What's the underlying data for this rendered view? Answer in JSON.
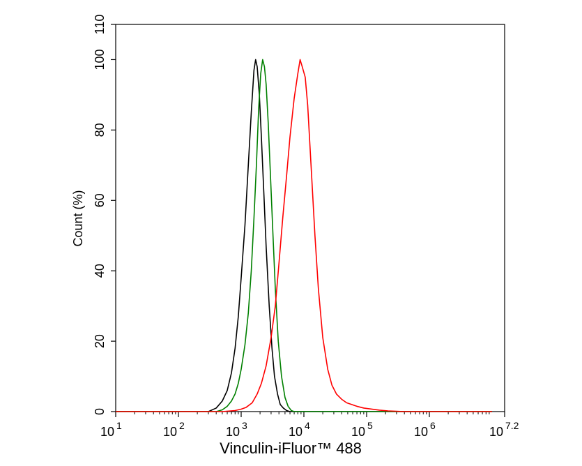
{
  "chart_data": {
    "type": "line",
    "title": "",
    "xlabel": "Vinculin-iFluor™ 488",
    "ylabel": "Count  (%)",
    "x_scale": "log10",
    "xlim": [
      10,
      15848932
    ],
    "ylim": [
      0,
      110
    ],
    "x_ticks": [
      {
        "base": "10",
        "exp": "1",
        "value": 10
      },
      {
        "base": "10",
        "exp": "2",
        "value": 100
      },
      {
        "base": "10",
        "exp": "3",
        "value": 1000
      },
      {
        "base": "10",
        "exp": "4",
        "value": 10000
      },
      {
        "base": "10",
        "exp": "5",
        "value": 100000
      },
      {
        "base": "10",
        "exp": "6",
        "value": 1000000
      },
      {
        "base": "10",
        "exp": "7.2",
        "value": 15848932
      }
    ],
    "y_ticks": [
      "0",
      "20",
      "40",
      "60",
      "80",
      "100",
      "110"
    ],
    "grid": false,
    "series": [
      {
        "color": "#000000",
        "x": [
          10,
          100,
          200,
          300,
          400,
          500,
          600,
          700,
          800,
          900,
          1000,
          1150,
          1300,
          1450,
          1600,
          1700,
          1800,
          1950,
          2100,
          2300,
          2500,
          2800,
          3100,
          3400,
          3800,
          4200,
          4700,
          5300,
          6000,
          7000,
          10000000
        ],
        "y": [
          0,
          0,
          0,
          0,
          1,
          3,
          6,
          11,
          18,
          27,
          38,
          53,
          70,
          85,
          97,
          100,
          98,
          90,
          78,
          62,
          47,
          30,
          18,
          10,
          5,
          2,
          1,
          0.3,
          0,
          0,
          0
        ]
      },
      {
        "color": "#008000",
        "x": [
          10,
          200,
          400,
          500,
          600,
          700,
          800,
          900,
          1000,
          1150,
          1300,
          1450,
          1600,
          1750,
          1900,
          2050,
          2200,
          2350,
          2500,
          2700,
          2900,
          3200,
          3500,
          3900,
          4400,
          5000,
          5600,
          6300,
          7000,
          10000000
        ],
        "y": [
          0,
          0,
          0,
          0.5,
          1.5,
          3,
          5,
          8,
          12,
          19,
          28,
          40,
          55,
          70,
          86,
          96,
          100,
          98,
          93,
          82,
          69,
          51,
          35,
          20,
          10,
          4,
          1.5,
          0.3,
          0,
          0
        ]
      },
      {
        "color": "#ff0000",
        "x": [
          10,
          500,
          800,
          1000,
          1200,
          1500,
          1800,
          2100,
          2500,
          3000,
          3500,
          4000,
          4600,
          5300,
          6000,
          7000,
          8000,
          8700,
          9400,
          10500,
          11500,
          13000,
          15000,
          17000,
          20000,
          24000,
          28000,
          33000,
          40000,
          48000,
          58000,
          70000,
          90000,
          120000,
          160000,
          220000,
          300000,
          400000,
          600000,
          10000000
        ],
        "y": [
          0,
          0,
          0.3,
          0.7,
          1.2,
          2.5,
          5,
          8,
          13,
          21,
          30,
          42,
          55,
          67,
          78,
          89,
          96,
          100,
          98,
          95,
          87,
          70,
          50,
          35,
          21,
          12,
          7.5,
          5,
          3.5,
          2.5,
          2,
          1.5,
          1,
          0.7,
          0.4,
          0.2,
          0.1,
          0,
          0,
          0
        ]
      }
    ]
  }
}
